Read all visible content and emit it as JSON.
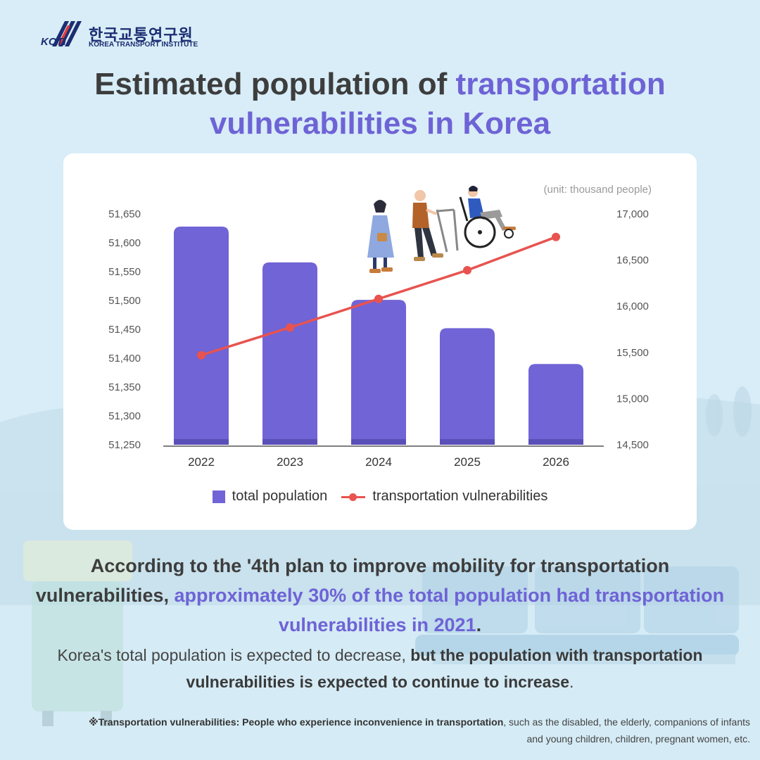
{
  "header": {
    "logo_mark": "KOTI",
    "logo_korean": "한국교통연구원",
    "logo_english": "KOREA TRANSPORT INSTITUTE"
  },
  "title": {
    "part1": "Estimated population of",
    "part2_accent": "transportation vulnerabilities in Korea"
  },
  "colors": {
    "accent": "#6e63d6",
    "bar": "#7064d6",
    "line": "#e8534f",
    "background": "#d7ecf6"
  },
  "chart_data": {
    "type": "bar",
    "unit_note": "(unit: thousand people)",
    "categories": [
      "2022",
      "2023",
      "2024",
      "2025",
      "2026"
    ],
    "series": [
      {
        "name": "total population",
        "type": "bar",
        "axis": "left",
        "values": [
          51628,
          51566,
          51501,
          51452,
          51390
        ]
      },
      {
        "name": "transportation vulnerabilities",
        "type": "line",
        "axis": "right",
        "values": [
          15470,
          15770,
          16080,
          16390,
          16750
        ]
      }
    ],
    "y_left": {
      "ticks": [
        "51,650",
        "51,600",
        "51,550",
        "51,500",
        "51,450",
        "51,400",
        "51,350",
        "51,300",
        "51,250"
      ],
      "min": 51250,
      "max": 51650
    },
    "y_right": {
      "ticks": [
        "17,000",
        "16,500",
        "16,000",
        "15,500",
        "15,000",
        "14,500"
      ],
      "min": 14500,
      "max": 17000
    },
    "grid": false,
    "legend_position": "bottom-center"
  },
  "body": {
    "p1_plain": "According to the '4th plan to improve mobility for transportation vulnerabilities,",
    "p1_accent": "approximately 30% of the total population had transportation vulnerabilities in 2021",
    "p1_end": ".",
    "p2_plain": "Korea's total population is expected to decrease,",
    "p2_bold": "but the population with transportation vulnerabilities is expected to continue to increase",
    "p2_end": "."
  },
  "footnote": {
    "bold": "※Transportation vulnerabilities: People who experience inconvenience in transportation",
    "plain": ", such as the disabled, the elderly, companions of infants and young children, children, pregnant women, etc."
  }
}
